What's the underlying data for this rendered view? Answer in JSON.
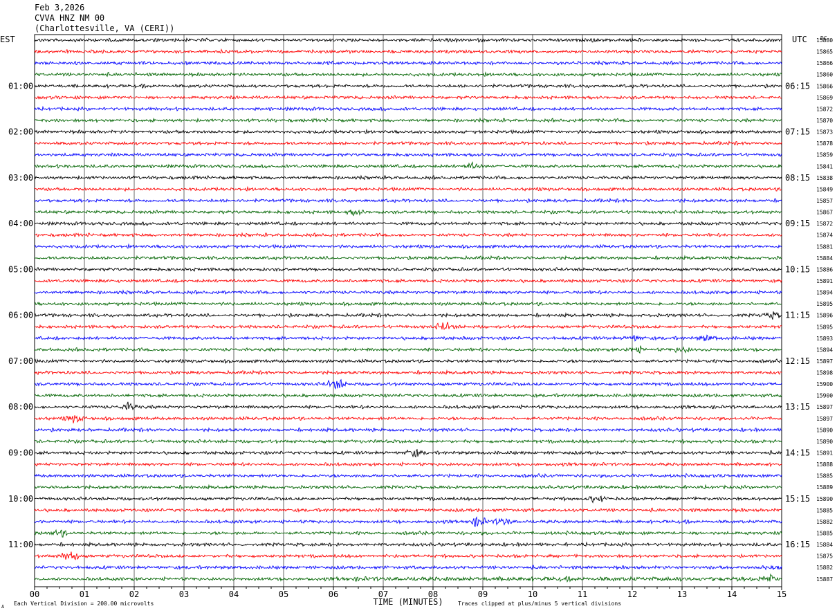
{
  "header": {
    "date": "Feb 3,2026",
    "station": "CVVA HNZ NM 00",
    "location": "(Charlottesville, VA (CERI))"
  },
  "chart_data": {
    "type": "line",
    "title": "CVVA HNZ NM 00",
    "left_axis_label": "EST",
    "right_axis_label": "UTC",
    "dc_label": "DC",
    "xlabel": "TIME (MINUTES)",
    "xlim": [
      0,
      15
    ],
    "x_ticks": [
      "00",
      "01",
      "02",
      "03",
      "04",
      "05",
      "06",
      "07",
      "08",
      "09",
      "10",
      "11",
      "12",
      "13",
      "14",
      "15"
    ],
    "left_hour_labels": [
      "01:00",
      "02:00",
      "03:00",
      "04:00",
      "05:00",
      "06:00",
      "07:00",
      "08:00",
      "09:00",
      "10:00",
      "11:00"
    ],
    "right_hour_labels": [
      "06:15",
      "07:15",
      "08:15",
      "09:15",
      "10:15",
      "11:15",
      "12:15",
      "13:15",
      "14:15",
      "15:15",
      "16:15"
    ],
    "first_hour_label_trace": 4,
    "traces_per_hour": 4,
    "trace_colors": [
      "#000000",
      "#ff0000",
      "#0000ff",
      "#006400"
    ],
    "dc_offsets": [
      "15880",
      "15865",
      "15866",
      "15860",
      "15866",
      "15869",
      "15872",
      "15870",
      "15873",
      "15878",
      "15859",
      "15841",
      "15838",
      "15849",
      "15857",
      "15867",
      "15872",
      "15874",
      "15881",
      "15884",
      "15886",
      "15891",
      "15894",
      "15895",
      "15896",
      "15895",
      "15893",
      "15894",
      "15897",
      "15898",
      "15900",
      "15900",
      "15897",
      "15897",
      "15890",
      "15890",
      "15891",
      "15888",
      "15885",
      "15889",
      "15890",
      "15885",
      "15882",
      "15885",
      "15884",
      "15875",
      "15882",
      "15887"
    ],
    "events": [
      {
        "trace": 11,
        "minute": 8.8,
        "amplitude": 1.6
      },
      {
        "trace": 15,
        "minute": 6.45,
        "amplitude": 1.4
      },
      {
        "trace": 24,
        "minute": 14.8,
        "amplitude": 1.8
      },
      {
        "trace": 25,
        "minute": 8.25,
        "amplitude": 2.4
      },
      {
        "trace": 26,
        "minute": 12.05,
        "amplitude": 1.5
      },
      {
        "trace": 26,
        "minute": 13.5,
        "amplitude": 1.4
      },
      {
        "trace": 27,
        "minute": 12.05,
        "amplitude": 1.8
      },
      {
        "trace": 27,
        "minute": 13.0,
        "amplitude": 1.5
      },
      {
        "trace": 30,
        "minute": 6.05,
        "amplitude": 3.2
      },
      {
        "trace": 32,
        "minute": 1.9,
        "amplitude": 2.4
      },
      {
        "trace": 33,
        "minute": 0.8,
        "amplitude": 2.2
      },
      {
        "trace": 36,
        "minute": 7.6,
        "amplitude": 2.0
      },
      {
        "trace": 40,
        "minute": 11.3,
        "amplitude": 1.6
      },
      {
        "trace": 42,
        "minute": 8.9,
        "amplitude": 2.5
      },
      {
        "trace": 42,
        "minute": 9.4,
        "amplitude": 2.2
      },
      {
        "trace": 43,
        "minute": 0.5,
        "amplitude": 1.6
      },
      {
        "trace": 45,
        "minute": 0.7,
        "amplitude": 3.6
      },
      {
        "trace": 46,
        "minute": 14.8,
        "amplitude": 1.6
      },
      {
        "trace": 47,
        "minute": 14.8,
        "amplitude": 1.6
      }
    ],
    "footer_left": "Each Vertical Division =  200.00 microvolts",
    "footer_right": "Traces clipped at plus/minus 5 vertical divisions",
    "corner_mark": "A"
  }
}
